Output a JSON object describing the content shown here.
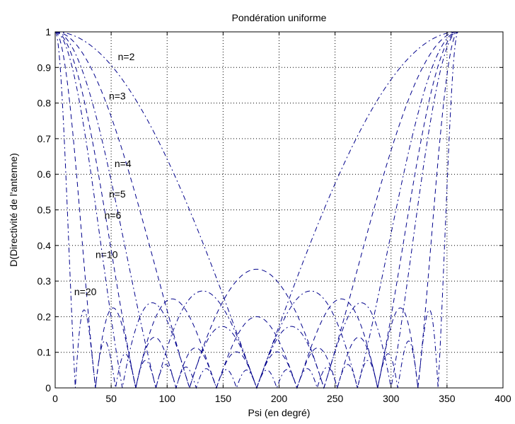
{
  "chart_data": {
    "type": "line",
    "title": "Pondération uniforme",
    "xlabel": "Psi (en degré)",
    "ylabel": "D(Directivité de l'antenne)",
    "xlim": [
      0,
      400
    ],
    "ylim": [
      0,
      1
    ],
    "xticks": [
      0,
      50,
      100,
      150,
      200,
      250,
      300,
      350,
      400
    ],
    "yticks": [
      0,
      0.1,
      0.2,
      0.3,
      0.4,
      0.5,
      0.6,
      0.7,
      0.8,
      0.9,
      1
    ],
    "x_tick_labels": [
      "0",
      "50",
      "100",
      "150",
      "200",
      "250",
      "300",
      "350",
      "400"
    ],
    "y_tick_labels": [
      "0",
      "0.1",
      "0.2",
      "0.3",
      "0.4",
      "0.5",
      "0.6",
      "0.7",
      "0.8",
      "0.9",
      "1"
    ],
    "grid": true,
    "line_color": "#00008b",
    "function": "|sin(n·psi/2) / (n·sin(psi/2))|, psi from 0 to 360 degrees",
    "series": [
      {
        "n": 2,
        "x_range": [
          0,
          360
        ]
      },
      {
        "n": 3,
        "x_range": [
          0,
          360
        ]
      },
      {
        "n": 4,
        "x_range": [
          0,
          360
        ]
      },
      {
        "n": 5,
        "x_range": [
          0,
          360
        ]
      },
      {
        "n": 6,
        "x_range": [
          0,
          360
        ]
      },
      {
        "n": 10,
        "x_range": [
          0,
          360
        ]
      },
      {
        "n": 20,
        "x_range": [
          0,
          360
        ]
      }
    ],
    "annotations": [
      {
        "text": "n=2",
        "x": 56,
        "y": 0.93
      },
      {
        "text": "n=3",
        "x": 48,
        "y": 0.82
      },
      {
        "text": "n=4",
        "x": 53,
        "y": 0.63
      },
      {
        "text": "n=5",
        "x": 48,
        "y": 0.545
      },
      {
        "text": "n=6",
        "x": 44,
        "y": 0.485
      },
      {
        "text": "n=10",
        "x": 36,
        "y": 0.375
      },
      {
        "text": "n=20",
        "x": 17,
        "y": 0.27
      }
    ]
  }
}
